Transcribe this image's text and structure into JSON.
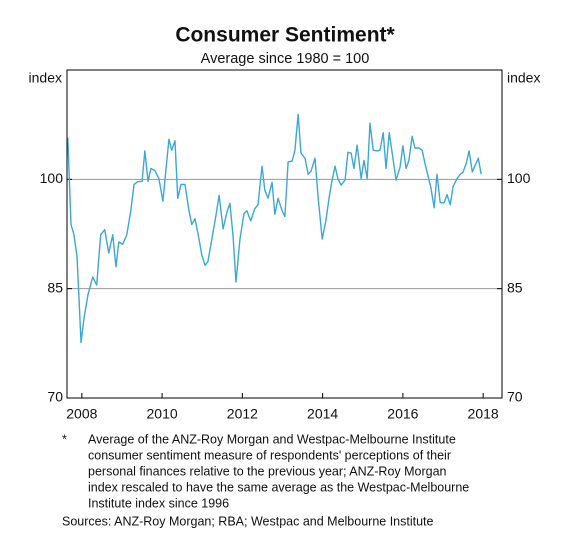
{
  "chart_data": {
    "type": "line",
    "title": "Consumer Sentiment*",
    "subtitle": "Average since 1980 = 100",
    "y_label": "index",
    "x": [
      2007.65,
      2007.73,
      2007.8,
      2007.88,
      2007.98,
      2008.05,
      2008.15,
      2008.27,
      2008.37,
      2008.47,
      2008.57,
      2008.67,
      2008.77,
      2008.85,
      2008.92,
      2009.02,
      2009.12,
      2009.22,
      2009.3,
      2009.4,
      2009.5,
      2009.57,
      2009.65,
      2009.72,
      2009.82,
      2009.92,
      2010.02,
      2010.09,
      2010.17,
      2010.24,
      2010.32,
      2010.39,
      2010.47,
      2010.57,
      2010.67,
      2010.74,
      2010.82,
      2010.92,
      2010.99,
      2011.07,
      2011.14,
      2011.24,
      2011.34,
      2011.42,
      2011.52,
      2011.62,
      2011.69,
      2011.77,
      2011.84,
      2011.94,
      2012.04,
      2012.11,
      2012.21,
      2012.31,
      2012.39,
      2012.49,
      2012.56,
      2012.64,
      2012.74,
      2012.81,
      2012.89,
      2012.99,
      2013.06,
      2013.14,
      2013.24,
      2013.31,
      2013.39,
      2013.46,
      2013.56,
      2013.64,
      2013.71,
      2013.81,
      2013.89,
      2013.99,
      2014.08,
      2014.16,
      2014.23,
      2014.31,
      2014.38,
      2014.46,
      2014.56,
      2014.63,
      2014.71,
      2014.78,
      2014.86,
      2014.96,
      2015.03,
      2015.11,
      2015.18,
      2015.26,
      2015.36,
      2015.43,
      2015.51,
      2015.58,
      2015.66,
      2015.76,
      2015.83,
      2015.93,
      2016.0,
      2016.08,
      2016.15,
      2016.23,
      2016.3,
      2016.4,
      2016.48,
      2016.55,
      2016.63,
      2016.7,
      2016.78,
      2016.85,
      2016.93,
      2017.03,
      2017.1,
      2017.18,
      2017.25,
      2017.35,
      2017.43,
      2017.5,
      2017.58,
      2017.65,
      2017.73,
      2017.8,
      2017.88,
      2017.95
    ],
    "values": [
      105.7,
      93.8,
      92.5,
      89.4,
      77.6,
      80.8,
      84.1,
      86.6,
      85.5,
      92.4,
      93.1,
      89.9,
      92.4,
      88,
      91.4,
      91.1,
      92.4,
      95.7,
      99.3,
      99.7,
      99.7,
      103.9,
      99.7,
      101.5,
      101.2,
      100.1,
      97,
      101,
      105.5,
      104,
      105.3,
      97.4,
      99.3,
      99.3,
      95.7,
      93.8,
      94.6,
      91.8,
      89.6,
      88.2,
      88.7,
      91.8,
      95,
      97.8,
      93.2,
      95.6,
      96.7,
      92.1,
      85.9,
      91.8,
      95.3,
      95.7,
      94.3,
      96,
      96.5,
      101.8,
      98.5,
      97.4,
      99.6,
      95.2,
      97.4,
      95.7,
      94.9,
      102.4,
      102.5,
      104,
      108.9,
      103.6,
      102.9,
      100.7,
      101.1,
      102.9,
      97.4,
      91.8,
      94.3,
      97.4,
      99.7,
      101.8,
      100.1,
      99.2,
      99.9,
      103.7,
      103.6,
      101.5,
      104.7,
      100.1,
      102.6,
      100.1,
      107.7,
      104,
      103.9,
      104,
      106.4,
      101.5,
      106.4,
      102.6,
      99.9,
      101.7,
      104.6,
      101.5,
      102.6,
      105.9,
      104.3,
      104.3,
      104,
      102.2,
      100.4,
      98.8,
      96.1,
      100.7,
      96.8,
      96.8,
      97.9,
      96.5,
      99,
      100.1,
      100.7,
      101,
      102.2,
      103.9,
      101,
      101.9,
      102.9,
      100.7
    ],
    "color": "#3aa8d8",
    "xlim": [
      2007.63,
      2018.47
    ],
    "xticks": [
      2008,
      2010,
      2012,
      2014,
      2016,
      2018
    ],
    "ylim": [
      70,
      115
    ],
    "yticks": [
      70,
      85,
      100
    ],
    "grid": true
  },
  "footnote": {
    "marker": "*",
    "lines": [
      "Average of the ANZ-Roy Morgan and Westpac-Melbourne Institute",
      "consumer sentiment measure of respondents' perceptions of their",
      "personal finances relative to the previous year; ANZ-Roy Morgan",
      "index rescaled to have the same average as the Westpac-Melbourne",
      "Institute index since 1996"
    ]
  },
  "source": "Sources: ANZ-Roy Morgan; RBA; Westpac and Melbourne Institute"
}
